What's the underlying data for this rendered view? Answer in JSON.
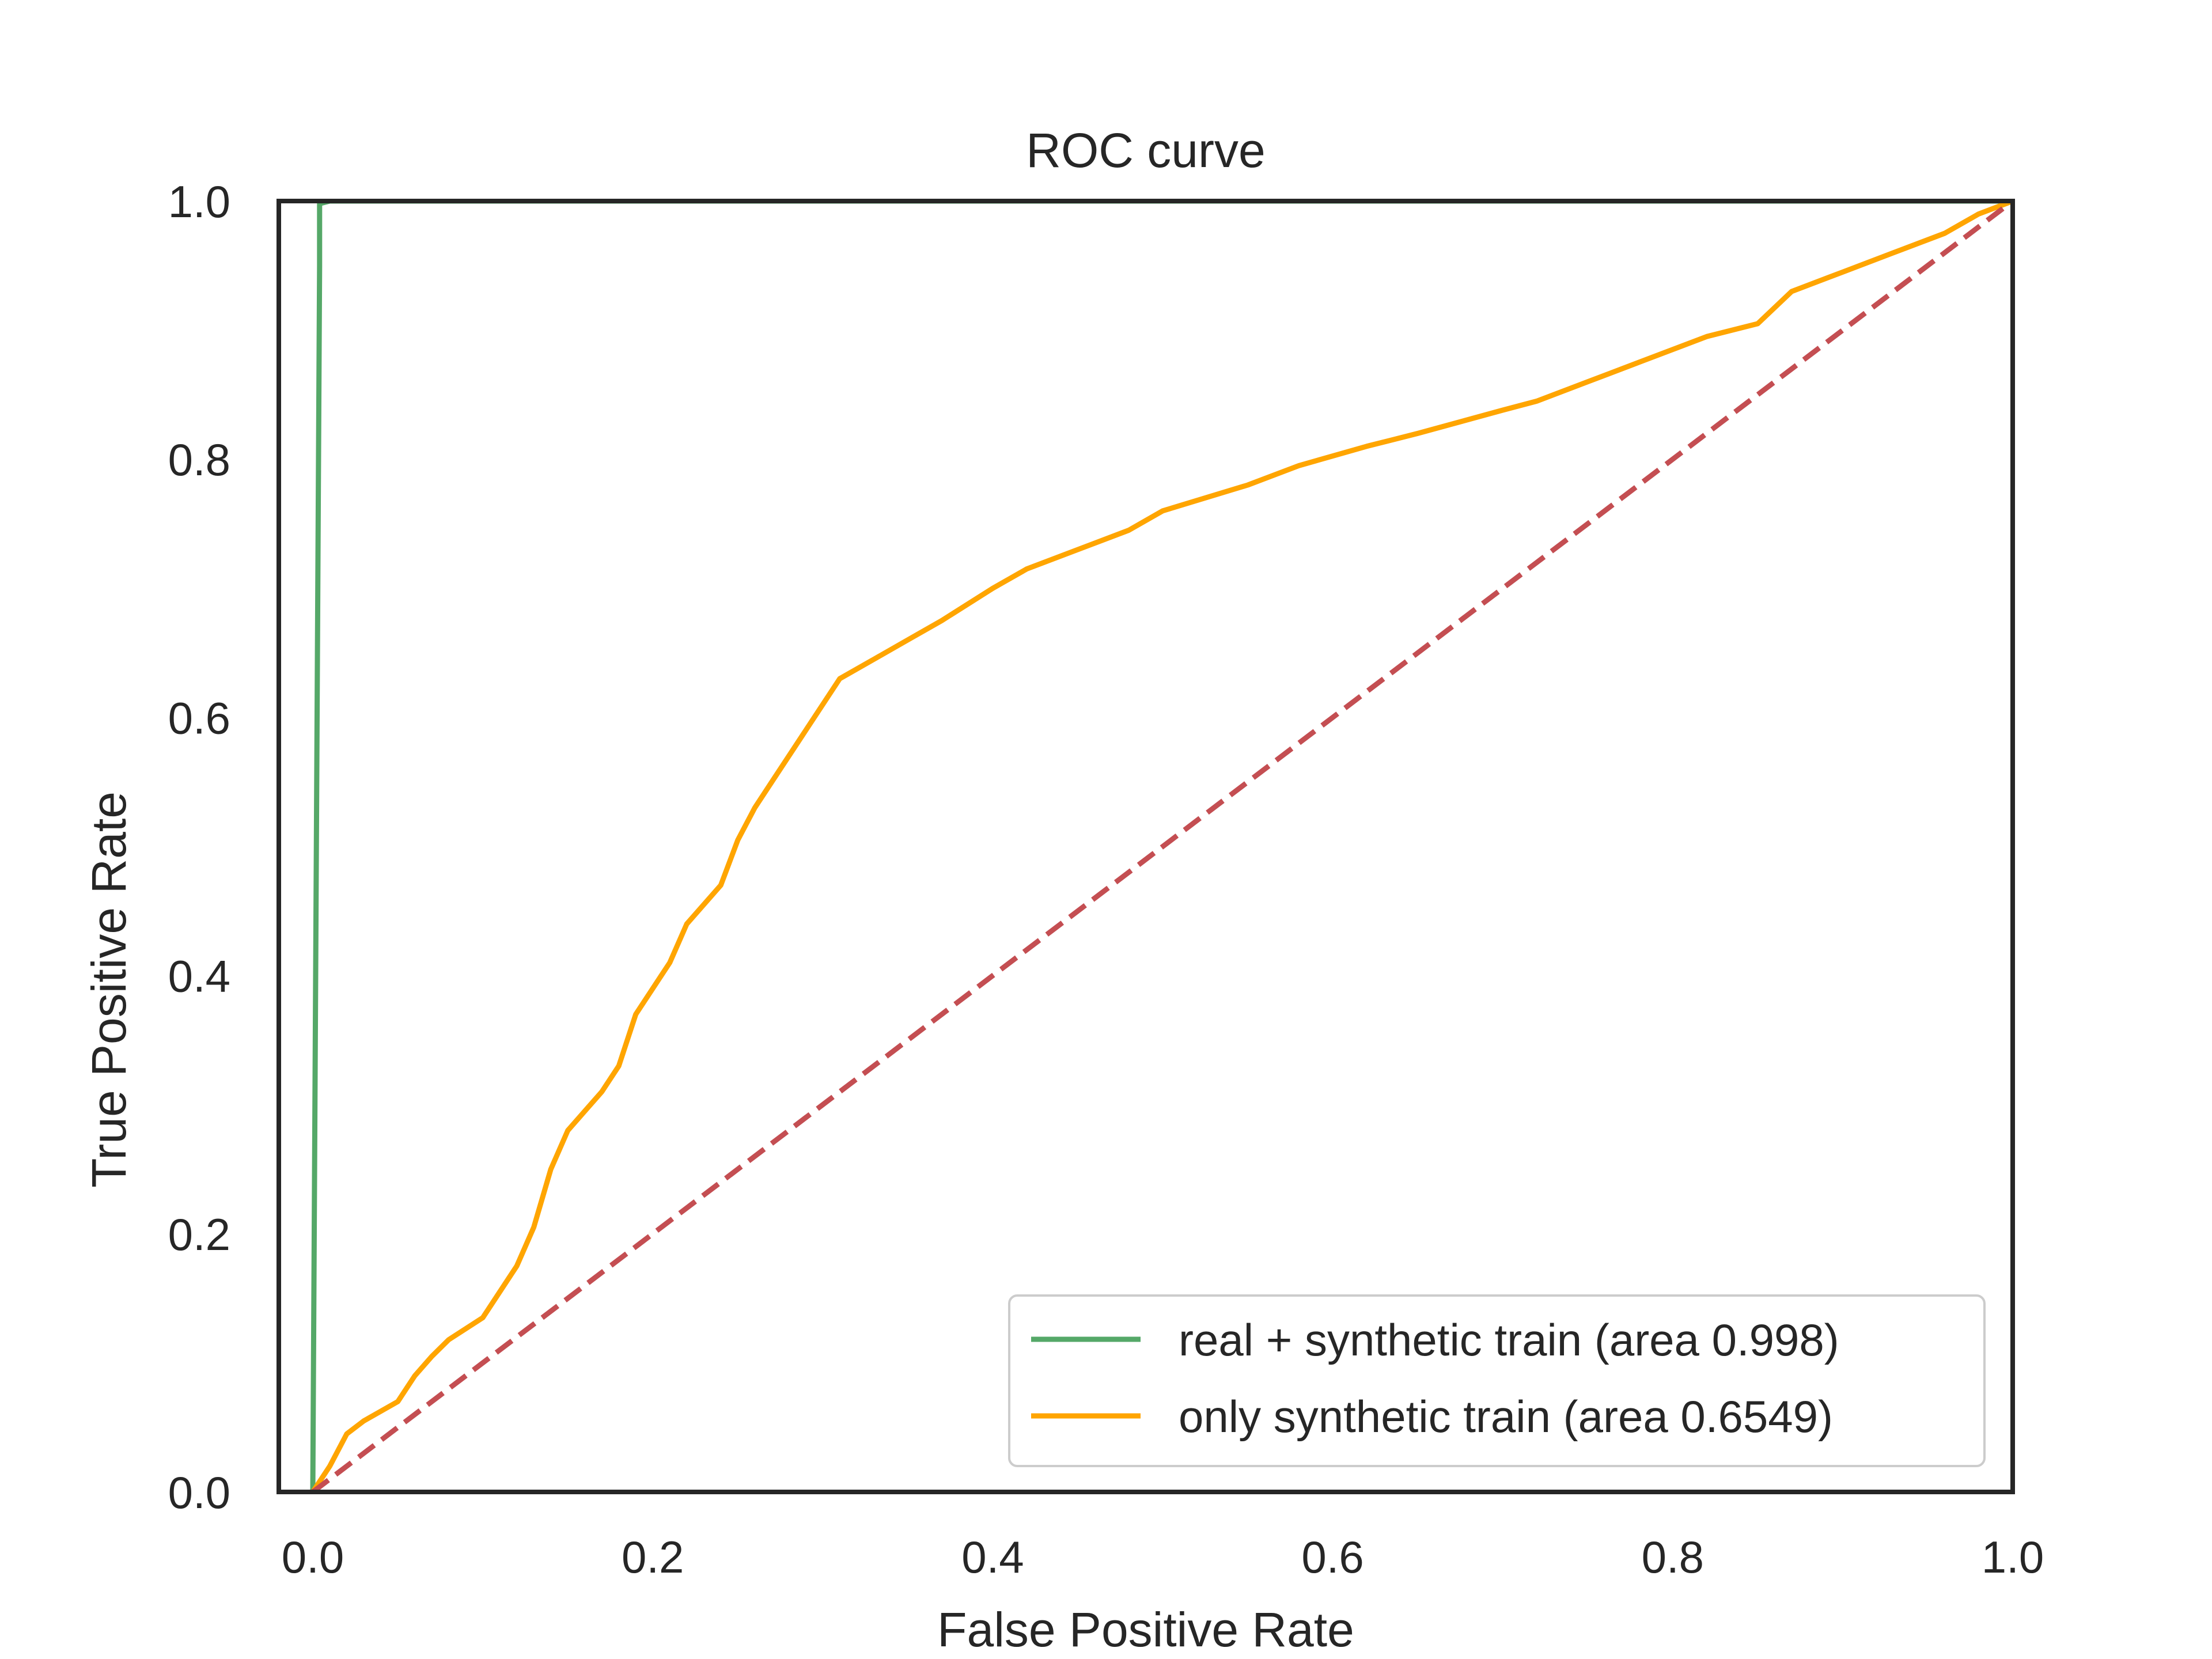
{
  "chart_data": {
    "type": "line",
    "title": "ROC curve",
    "xlabel": "False Positive Rate",
    "ylabel": "True Positive Rate",
    "xlim": [
      -0.02,
      1.0
    ],
    "ylim": [
      0.0,
      1.0
    ],
    "x_ticks": [
      0.0,
      0.2,
      0.4,
      0.6,
      0.8,
      1.0
    ],
    "y_ticks": [
      0.0,
      0.2,
      0.4,
      0.6,
      0.8,
      1.0
    ],
    "x_tick_labels": [
      "0.0",
      "0.2",
      "0.4",
      "0.6",
      "0.8",
      "1.0"
    ],
    "y_tick_labels": [
      "0.0",
      "0.2",
      "0.4",
      "0.6",
      "0.8",
      "1.0"
    ],
    "grid": false,
    "legend_position": "lower-right",
    "series": [
      {
        "name": "real + synthetic train (area 0.998)",
        "color": "#55a868",
        "style": "solid",
        "x": [
          0.0,
          0.004,
          0.004,
          0.01,
          1.0
        ],
        "y": [
          0.0,
          0.95,
          0.998,
          1.0,
          1.0
        ]
      },
      {
        "name": "only synthetic train (area 0.6549)",
        "color": "#ffa500",
        "style": "solid",
        "x": [
          0.0,
          0.01,
          0.02,
          0.03,
          0.05,
          0.06,
          0.07,
          0.08,
          0.1,
          0.11,
          0.12,
          0.13,
          0.14,
          0.15,
          0.17,
          0.18,
          0.19,
          0.21,
          0.22,
          0.24,
          0.25,
          0.26,
          0.27,
          0.28,
          0.29,
          0.31,
          0.33,
          0.35,
          0.37,
          0.4,
          0.42,
          0.45,
          0.48,
          0.5,
          0.55,
          0.58,
          0.62,
          0.65,
          0.7,
          0.72,
          0.75,
          0.78,
          0.82,
          0.85,
          0.87,
          0.9,
          0.93,
          0.96,
          0.98,
          1.0
        ],
        "y": [
          0.0,
          0.02,
          0.045,
          0.055,
          0.07,
          0.09,
          0.105,
          0.118,
          0.135,
          0.155,
          0.175,
          0.205,
          0.25,
          0.28,
          0.31,
          0.33,
          0.37,
          0.41,
          0.44,
          0.47,
          0.505,
          0.53,
          0.55,
          0.57,
          0.59,
          0.63,
          0.645,
          0.66,
          0.675,
          0.7,
          0.715,
          0.73,
          0.745,
          0.76,
          0.78,
          0.795,
          0.81,
          0.82,
          0.838,
          0.845,
          0.86,
          0.875,
          0.895,
          0.905,
          0.93,
          0.945,
          0.96,
          0.975,
          0.99,
          1.0
        ]
      },
      {
        "name": "",
        "color": "#c44e52",
        "style": "dashed",
        "x": [
          0.0,
          1.0
        ],
        "y": [
          0.0,
          1.0
        ]
      }
    ]
  }
}
